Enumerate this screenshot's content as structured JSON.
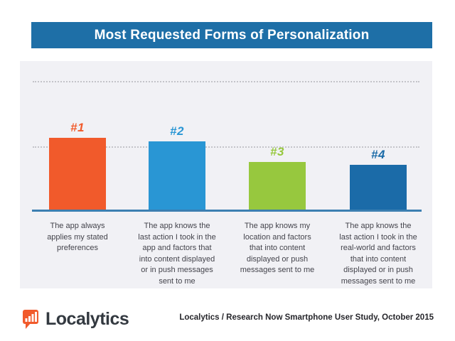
{
  "header": {
    "title": "Most Requested Forms of Personalization",
    "bg_color": "#1e6fa7"
  },
  "chart_data": {
    "type": "bar",
    "title": "Most Requested Forms of Personalization",
    "categories": [
      "The app always applies my stated preferences",
      "The app knows the last action I took in the app and factors that into content displayed or in push messages sent to me",
      "The app knows my location and factors that into content displayed or push messages sent to me",
      "The app knows the last action I took in the real-world and factors that into content displayed or in push messages sent to me"
    ],
    "category_lines": [
      [
        "The app always",
        "applies my stated",
        "preferences"
      ],
      [
        "The app knows the",
        "last action I took in the",
        "app and factors that",
        "into content displayed",
        "or in push messages",
        "sent to me"
      ],
      [
        "The app knows my",
        "location and factors",
        "that into content",
        "displayed or push",
        "messages sent to me"
      ],
      [
        "The app knows the",
        "last action I took in the",
        "real-world and factors",
        "that into content",
        "displayed or in push",
        "messages sent to me"
      ]
    ],
    "rank_labels": [
      "#1",
      "#2",
      "#3",
      "#4"
    ],
    "values": [
      56,
      53,
      37,
      35
    ],
    "values_estimated_from_gridlines": true,
    "bar_colors": [
      "#f15a2b",
      "#2996d4",
      "#97c83e",
      "#1b6ba8"
    ],
    "value_axis": {
      "visible": false,
      "range": [
        0,
        100
      ],
      "gridlines_at": [
        50,
        100
      ],
      "gridline_style": "dotted"
    },
    "legend": "none",
    "plot_bg_color": "#f1f1f5",
    "baseline_color": "#3c7fb1"
  },
  "footer": {
    "brand_name": "Localytics",
    "brand_color": "#f15a2b",
    "source_text": "Localytics / Research Now Smartphone User Study, October 2015"
  }
}
